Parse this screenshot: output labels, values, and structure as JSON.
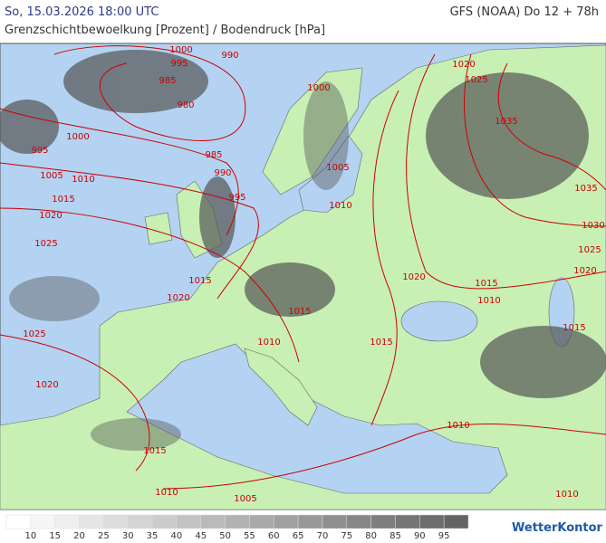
{
  "header": {
    "date": "So, 15.03.2026 18:00 UTC",
    "model": "GFS (NOAA) Do 12 + 78h",
    "subtitle": "Grenzschichtbewoelkung [Prozent] / Bodendruck [hPa]"
  },
  "isobar_labels": [
    "1000",
    "995",
    "990",
    "985",
    "980",
    "995",
    "1000",
    "985",
    "990",
    "1005",
    "1010",
    "995",
    "1015",
    "1020",
    "1025",
    "1020",
    "1015",
    "1015",
    "1010",
    "1025",
    "1020",
    "1015",
    "1010",
    "1005",
    "1000",
    "1005",
    "1010",
    "1020",
    "1025",
    "1035",
    "1035",
    "1030",
    "1025",
    "1020",
    "1020",
    "1015",
    "1010",
    "1015",
    "1010",
    "1010",
    "1015"
  ],
  "legend": {
    "labels": [
      "10",
      "15",
      "20",
      "25",
      "30",
      "35",
      "40",
      "45",
      "50",
      "55",
      "60",
      "65",
      "70",
      "75",
      "80",
      "85",
      "90",
      "95"
    ]
  },
  "brand": "WetterKontor"
}
